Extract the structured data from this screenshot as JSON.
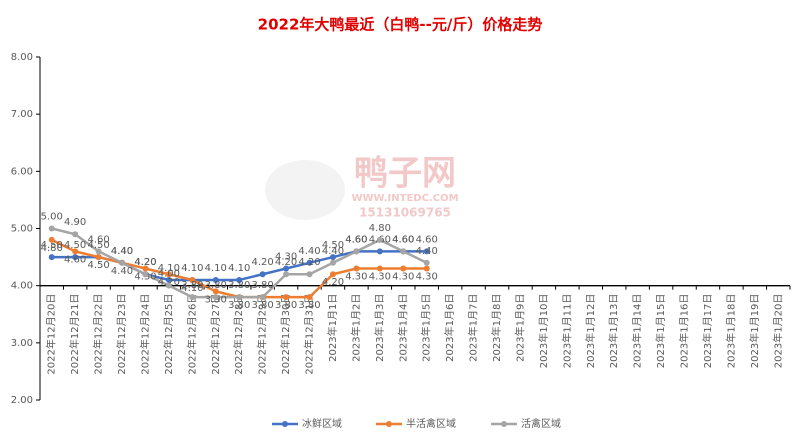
{
  "chart_data": {
    "type": "line",
    "title": "2022年大鸭最近（白鸭--元/斤）价格走势",
    "watermark": [
      "鸭子网",
      "WWW.INTEDC.COM",
      "15131069765"
    ],
    "categories": [
      "2022年12月20日",
      "2022年12月21日",
      "2022年12月22日",
      "2022年12月23日",
      "2022年12月24日",
      "2022年12月25日",
      "2022年12月26日",
      "2022年12月27日",
      "2022年12月28日",
      "2022年12月29日",
      "2022年12月30日",
      "2022年12月31日",
      "2023年1月1日",
      "2023年1月2日",
      "2023年1月3日",
      "2023年1月4日",
      "2023年1月5日",
      "2023年1月6日",
      "2023年1月7日",
      "2023年1月8日",
      "2023年1月9日",
      "2023年1月10日",
      "2023年1月11日",
      "2023年1月12日",
      "2023年1月13日",
      "2023年1月14日",
      "2023年1月15日",
      "2023年1月16日",
      "2023年1月17日",
      "2023年1月18日",
      "2023年1月19日",
      "2023年1月20日"
    ],
    "series": [
      {
        "name": "冰鲜区域",
        "color": "#4472c4",
        "values": [
          4.5,
          4.5,
          4.5,
          4.4,
          4.2,
          4.1,
          4.1,
          4.1,
          4.1,
          4.2,
          4.3,
          4.4,
          4.5,
          4.6,
          4.6,
          4.6,
          4.6,
          null,
          null,
          null,
          null,
          null,
          null,
          null,
          null,
          null,
          null,
          null,
          null,
          null,
          null,
          null
        ],
        "value_labels": [
          "4.50",
          "4.50",
          "4.50",
          "4.40",
          "4.20",
          "4.10",
          "4.10",
          "4.10",
          "4.10",
          "4.20",
          "4.30",
          "4.40",
          "4.50",
          "4.60",
          "4.60",
          "4.60",
          "4.60",
          null,
          null,
          null,
          null,
          null,
          null,
          null,
          null,
          null,
          null,
          null,
          null,
          null,
          null,
          null
        ]
      },
      {
        "name": "半活禽区域",
        "color": "#ed7d31",
        "values": [
          4.8,
          4.6,
          4.5,
          4.4,
          4.3,
          4.2,
          4.1,
          3.9,
          3.8,
          3.8,
          3.8,
          3.8,
          4.2,
          4.3,
          4.3,
          4.3,
          4.3,
          null,
          null,
          null,
          null,
          null,
          null,
          null,
          null,
          null,
          null,
          null,
          null,
          null,
          null,
          null
        ],
        "value_labels": [
          "4.80",
          "4.60",
          "4.50",
          "4.40",
          "4.30",
          "4.20",
          "4.10",
          "3.90",
          "3.80",
          "3.80",
          "3.80",
          "3.80",
          "4.20",
          "4.30",
          "4.30",
          "4.30",
          "4.30",
          null,
          null,
          null,
          null,
          null,
          null,
          null,
          null,
          null,
          null,
          null,
          null,
          null,
          null,
          null
        ]
      },
      {
        "name": "活禽区域",
        "color": "#a5a5a5",
        "values": [
          5.0,
          4.9,
          4.6,
          4.4,
          4.2,
          4.0,
          3.8,
          3.8,
          3.8,
          3.8,
          4.2,
          4.2,
          4.4,
          4.6,
          4.8,
          4.6,
          4.4,
          null,
          null,
          null,
          null,
          null,
          null,
          null,
          null,
          null,
          null,
          null,
          null,
          null,
          null,
          null
        ],
        "value_labels": [
          "5.00",
          "4.90",
          "4.60",
          "4.40",
          "4.20",
          "4.00",
          "3.80",
          "3.80",
          "3.80",
          "3.80",
          "4.20",
          "4.20",
          "4.40",
          "4.60",
          "4.80",
          "4.60",
          "4.40",
          null,
          null,
          null,
          null,
          null,
          null,
          null,
          null,
          null,
          null,
          null,
          null,
          null,
          null,
          null
        ]
      }
    ],
    "ylim": [
      2,
      8
    ],
    "yticks": [
      {
        "value": 2,
        "label": "2.00"
      },
      {
        "value": 3,
        "label": "3.00"
      },
      {
        "value": 4,
        "label": "4.00"
      },
      {
        "value": 5,
        "label": "5.00"
      },
      {
        "value": 6,
        "label": "6.00"
      },
      {
        "value": 7,
        "label": "7.00"
      },
      {
        "value": 8,
        "label": "8.00"
      }
    ],
    "xaxis_cross": 4,
    "grid": false,
    "legend": "bottom"
  }
}
